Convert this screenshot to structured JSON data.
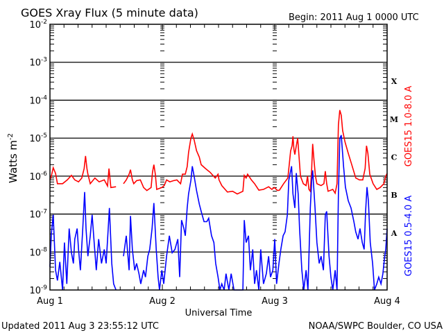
{
  "chart_data": {
    "type": "line",
    "title": "GOES Xray Flux (5 minute data)",
    "begin_label": "Begin:  2011 Aug 1 0000 UTC",
    "xlabel": "Universal Time",
    "ylabel": "Watts m",
    "ylabel_sup": "-2",
    "y_scale": "log10",
    "ylim_log10": [
      -9,
      -2
    ],
    "xlim_hours": [
      0,
      72
    ],
    "x_tick_labels": [
      {
        "hour": 0,
        "label": "Aug 1"
      },
      {
        "hour": 24,
        "label": "Aug 2"
      },
      {
        "hour": 48,
        "label": "Aug 3"
      },
      {
        "hour": 72,
        "label": "Aug 4"
      }
    ],
    "y_tick_labels": [
      {
        "exp": -2,
        "base": "10",
        "sup": "-2"
      },
      {
        "exp": -3,
        "base": "10",
        "sup": "-3"
      },
      {
        "exp": -4,
        "base": "10",
        "sup": "-4"
      },
      {
        "exp": -5,
        "base": "10",
        "sup": "-5"
      },
      {
        "exp": -6,
        "base": "10",
        "sup": "-6"
      },
      {
        "exp": -7,
        "base": "10",
        "sup": "-7"
      },
      {
        "exp": -8,
        "base": "10",
        "sup": "-8"
      },
      {
        "exp": -9,
        "base": "10",
        "sup": "-9"
      }
    ],
    "flare_classes": [
      {
        "label": "X",
        "exp": -4
      },
      {
        "label": "M",
        "exp": -5
      },
      {
        "label": "C",
        "exp": -6
      },
      {
        "label": "B",
        "exp": -7
      },
      {
        "label": "A",
        "exp": -8
      }
    ],
    "grid": true,
    "legend_placement": "right, vertical",
    "series": [
      {
        "name": "GOES15 1.0-8.0 A",
        "color": "#ff0000",
        "points_hours_log10": [
          [
            0.0,
            -6.1
          ],
          [
            0.3,
            -6.0
          ],
          [
            0.7,
            -5.78
          ],
          [
            1.2,
            -5.93
          ],
          [
            1.6,
            -6.2
          ],
          [
            2.7,
            -6.2
          ],
          [
            3.7,
            -6.1
          ],
          [
            4.6,
            -5.98
          ],
          [
            5.3,
            -6.1
          ],
          [
            6.1,
            -6.15
          ],
          [
            6.8,
            -6.05
          ],
          [
            7.3,
            -5.8
          ],
          [
            7.6,
            -5.47
          ],
          [
            7.9,
            -5.8
          ],
          [
            8.1,
            -5.95
          ],
          [
            8.6,
            -6.2
          ],
          [
            9.6,
            -6.05
          ],
          [
            10.5,
            -6.15
          ],
          [
            11.6,
            -6.1
          ],
          [
            12.3,
            -6.26
          ],
          [
            12.6,
            -5.8
          ],
          [
            13.0,
            -6.3
          ],
          [
            14.1,
            -6.28
          ],
          null,
          [
            15.7,
            -6.2
          ],
          [
            16.3,
            -6.1
          ],
          [
            16.9,
            -5.95
          ],
          [
            17.2,
            -5.83
          ],
          [
            17.6,
            -6.1
          ],
          [
            17.9,
            -6.2
          ],
          [
            18.5,
            -6.12
          ],
          [
            19.3,
            -6.1
          ],
          [
            20.0,
            -6.3
          ],
          [
            20.7,
            -6.38
          ],
          [
            21.6,
            -6.3
          ],
          [
            21.9,
            -5.9
          ],
          [
            22.2,
            -5.7
          ],
          [
            22.5,
            -5.95
          ],
          [
            22.8,
            -6.35
          ],
          [
            23.9,
            -6.3
          ],
          [
            24.4,
            -6.25
          ],
          [
            24.9,
            -6.1
          ],
          [
            25.6,
            -6.15
          ],
          [
            26.4,
            -6.12
          ],
          [
            27.1,
            -6.1
          ],
          [
            27.9,
            -6.2
          ],
          [
            28.3,
            -5.95
          ],
          [
            28.9,
            -5.95
          ],
          [
            29.3,
            -5.75
          ],
          [
            29.6,
            -5.38
          ],
          [
            30.1,
            -5.0
          ],
          [
            30.4,
            -4.89
          ],
          [
            30.8,
            -5.05
          ],
          [
            31.3,
            -5.33
          ],
          [
            31.9,
            -5.5
          ],
          [
            32.3,
            -5.7
          ],
          [
            33.2,
            -5.8
          ],
          [
            34.2,
            -5.9
          ],
          [
            35.3,
            -6.05
          ],
          [
            35.9,
            -5.95
          ],
          [
            36.1,
            -6.1
          ],
          [
            36.7,
            -6.25
          ],
          [
            37.9,
            -6.42
          ],
          [
            39.0,
            -6.4
          ],
          [
            40.0,
            -6.47
          ],
          [
            41.2,
            -6.4
          ],
          [
            41.5,
            -5.98
          ],
          [
            41.9,
            -6.05
          ],
          [
            42.2,
            -5.95
          ],
          [
            43.0,
            -6.1
          ],
          [
            43.7,
            -6.2
          ],
          [
            44.6,
            -6.37
          ],
          [
            45.6,
            -6.35
          ],
          [
            46.7,
            -6.28
          ],
          [
            47.4,
            -6.35
          ],
          [
            47.9,
            -6.3
          ],
          [
            48.6,
            -6.38
          ],
          [
            49.0,
            -6.37
          ],
          [
            49.9,
            -6.2
          ],
          [
            50.8,
            -6.05
          ],
          [
            51.1,
            -5.7
          ],
          [
            51.4,
            -5.34
          ],
          [
            51.7,
            -5.2
          ],
          [
            51.9,
            -4.95
          ],
          [
            52.1,
            -5.3
          ],
          [
            52.3,
            -5.43
          ],
          [
            52.6,
            -5.2
          ],
          [
            52.9,
            -5.0
          ],
          [
            53.2,
            -5.5
          ],
          [
            53.5,
            -6.0
          ],
          [
            54.1,
            -6.2
          ],
          [
            54.7,
            -6.25
          ],
          [
            55.0,
            -6.0
          ],
          [
            55.3,
            -6.35
          ],
          [
            55.6,
            -6.4
          ],
          [
            55.9,
            -5.8
          ],
          [
            56.1,
            -5.15
          ],
          [
            56.4,
            -5.6
          ],
          [
            56.7,
            -6.0
          ],
          [
            57.0,
            -6.2
          ],
          [
            57.9,
            -6.25
          ],
          [
            58.5,
            -6.2
          ],
          [
            58.8,
            -5.87
          ],
          [
            59.1,
            -6.2
          ],
          [
            59.4,
            -6.4
          ],
          [
            60.4,
            -6.35
          ],
          [
            60.9,
            -6.45
          ],
          [
            61.3,
            -6.2
          ],
          [
            61.6,
            -4.65
          ],
          [
            61.9,
            -4.26
          ],
          [
            62.2,
            -4.4
          ],
          [
            62.5,
            -4.8
          ],
          [
            63.0,
            -5.1
          ],
          [
            63.7,
            -5.4
          ],
          [
            64.4,
            -5.68
          ],
          [
            65.3,
            -6.05
          ],
          [
            66.1,
            -6.1
          ],
          [
            66.8,
            -6.1
          ],
          [
            67.3,
            -5.8
          ],
          [
            67.6,
            -5.2
          ],
          [
            67.9,
            -5.4
          ],
          [
            68.3,
            -5.95
          ],
          [
            69.0,
            -6.2
          ],
          [
            69.8,
            -6.35
          ],
          [
            70.5,
            -6.3
          ],
          [
            71.3,
            -6.2
          ],
          [
            71.7,
            -6.0
          ],
          [
            72.0,
            -5.93
          ]
        ]
      },
      {
        "name": "GOES15 0.5-4.0 A",
        "color": "#0000ff",
        "points_hours_log10": [
          [
            0.0,
            -8.39
          ],
          [
            0.3,
            -7.53
          ],
          [
            0.7,
            -7.02
          ],
          [
            1.2,
            -8.48
          ],
          [
            1.6,
            -8.75
          ],
          [
            2.1,
            -8.26
          ],
          [
            2.7,
            -9.0
          ],
          [
            3.1,
            -7.75
          ],
          [
            3.6,
            -8.84
          ],
          [
            4.1,
            -7.38
          ],
          [
            4.6,
            -8.02
          ],
          [
            5.0,
            -8.3
          ],
          [
            5.3,
            -7.66
          ],
          [
            5.8,
            -7.38
          ],
          [
            6.1,
            -7.93
          ],
          [
            6.5,
            -8.48
          ],
          [
            7.0,
            -7.38
          ],
          [
            7.4,
            -6.42
          ],
          [
            7.7,
            -7.38
          ],
          [
            8.1,
            -8.11
          ],
          [
            8.6,
            -7.57
          ],
          [
            9.0,
            -7.02
          ],
          [
            9.5,
            -7.84
          ],
          [
            9.9,
            -8.48
          ],
          [
            10.4,
            -7.66
          ],
          [
            11.0,
            -8.3
          ],
          [
            11.6,
            -7.93
          ],
          [
            12.0,
            -8.3
          ],
          [
            12.4,
            -7.47
          ],
          [
            12.7,
            -6.84
          ],
          [
            13.2,
            -8.3
          ],
          [
            13.6,
            -8.84
          ],
          [
            14.1,
            -9.0
          ],
          null,
          [
            15.7,
            -8.11
          ],
          [
            16.3,
            -7.57
          ],
          [
            16.9,
            -8.48
          ],
          [
            17.2,
            -7.05
          ],
          [
            17.6,
            -7.93
          ],
          [
            18.1,
            -8.48
          ],
          [
            18.5,
            -8.3
          ],
          [
            19.0,
            -8.57
          ],
          [
            19.4,
            -8.84
          ],
          [
            20.0,
            -8.48
          ],
          [
            20.4,
            -8.66
          ],
          [
            20.9,
            -8.11
          ],
          [
            21.3,
            -7.93
          ],
          [
            21.8,
            -7.38
          ],
          [
            22.2,
            -6.71
          ],
          [
            22.7,
            -7.93
          ],
          [
            23.1,
            -8.66
          ],
          [
            23.4,
            -9.0
          ],
          [
            23.9,
            -8.48
          ],
          [
            24.3,
            -8.84
          ],
          [
            24.9,
            -8.11
          ],
          [
            25.5,
            -7.57
          ],
          [
            26.1,
            -8.02
          ],
          [
            26.7,
            -7.93
          ],
          [
            27.3,
            -7.66
          ],
          [
            27.7,
            -8.66
          ],
          [
            28.1,
            -7.16
          ],
          [
            28.6,
            -7.38
          ],
          [
            28.9,
            -7.57
          ],
          [
            29.3,
            -6.84
          ],
          [
            29.6,
            -6.47
          ],
          [
            30.1,
            -6.11
          ],
          [
            30.4,
            -5.74
          ],
          [
            30.8,
            -6.01
          ],
          [
            31.3,
            -6.38
          ],
          [
            31.9,
            -6.74
          ],
          [
            32.3,
            -6.93
          ],
          [
            32.9,
            -7.2
          ],
          [
            33.5,
            -7.2
          ],
          [
            33.9,
            -7.11
          ],
          [
            34.5,
            -7.57
          ],
          [
            35.0,
            -7.75
          ],
          [
            35.4,
            -8.3
          ],
          [
            35.9,
            -8.66
          ],
          [
            36.3,
            -9.0
          ],
          [
            36.7,
            -8.84
          ],
          [
            37.2,
            -9.0
          ],
          [
            37.6,
            -8.57
          ],
          [
            38.2,
            -9.0
          ],
          [
            38.7,
            -8.57
          ],
          [
            39.3,
            -9.0
          ],
          [
            40.4,
            -9.0
          ],
          [
            41.2,
            -9.0
          ],
          [
            41.5,
            -7.16
          ],
          [
            41.9,
            -7.75
          ],
          [
            42.4,
            -7.57
          ],
          [
            42.8,
            -8.48
          ],
          [
            43.3,
            -7.93
          ],
          [
            43.7,
            -8.84
          ],
          [
            44.1,
            -8.48
          ],
          [
            44.6,
            -9.0
          ],
          [
            45.0,
            -7.93
          ],
          [
            45.6,
            -8.84
          ],
          [
            46.2,
            -8.57
          ],
          [
            46.7,
            -8.11
          ],
          [
            47.1,
            -8.66
          ],
          [
            47.6,
            -8.48
          ],
          [
            48.0,
            -7.66
          ],
          [
            48.4,
            -8.84
          ],
          [
            48.9,
            -8.3
          ],
          [
            49.3,
            -7.93
          ],
          [
            49.8,
            -7.57
          ],
          [
            50.2,
            -7.47
          ],
          [
            50.7,
            -7.02
          ],
          [
            51.0,
            -6.11
          ],
          [
            51.3,
            -5.92
          ],
          [
            51.6,
            -5.74
          ],
          [
            51.9,
            -6.47
          ],
          [
            52.3,
            -6.84
          ],
          [
            52.6,
            -5.92
          ],
          [
            53.0,
            -6.47
          ],
          [
            53.3,
            -7.38
          ],
          [
            53.8,
            -8.48
          ],
          [
            54.2,
            -9.0
          ],
          [
            54.7,
            -8.48
          ],
          [
            55.1,
            -9.0
          ],
          [
            55.6,
            -6.84
          ],
          [
            55.9,
            -6.11
          ],
          [
            56.1,
            -5.85
          ],
          [
            56.6,
            -6.84
          ],
          [
            57.0,
            -7.75
          ],
          [
            57.5,
            -8.3
          ],
          [
            57.9,
            -8.11
          ],
          [
            58.4,
            -8.48
          ],
          [
            58.8,
            -7.02
          ],
          [
            59.1,
            -6.93
          ],
          [
            59.6,
            -8.11
          ],
          [
            60.0,
            -8.66
          ],
          [
            60.4,
            -9.0
          ],
          [
            60.9,
            -8.48
          ],
          [
            61.3,
            -9.0
          ],
          [
            61.6,
            -6.47
          ],
          [
            61.9,
            -5.01
          ],
          [
            62.2,
            -4.92
          ],
          [
            62.7,
            -5.74
          ],
          [
            63.1,
            -6.29
          ],
          [
            63.7,
            -6.65
          ],
          [
            64.3,
            -6.84
          ],
          [
            64.9,
            -7.2
          ],
          [
            65.3,
            -7.47
          ],
          [
            65.8,
            -7.66
          ],
          [
            66.2,
            -7.38
          ],
          [
            66.7,
            -7.75
          ],
          [
            67.1,
            -7.93
          ],
          [
            67.4,
            -6.93
          ],
          [
            67.7,
            -6.29
          ],
          [
            68.0,
            -6.65
          ],
          [
            68.4,
            -7.75
          ],
          [
            68.9,
            -8.3
          ],
          [
            69.3,
            -9.0
          ],
          [
            69.8,
            -8.84
          ],
          [
            70.2,
            -8.66
          ],
          [
            70.7,
            -8.84
          ],
          [
            71.1,
            -8.57
          ],
          [
            71.4,
            -8.2
          ],
          [
            71.7,
            -7.93
          ],
          [
            72.0,
            -7.38
          ]
        ]
      }
    ]
  },
  "footer": {
    "updated": "Updated 2011 Aug  3 23:55:12 UTC",
    "credit": "NOAA/SWPC Boulder, CO USA"
  }
}
